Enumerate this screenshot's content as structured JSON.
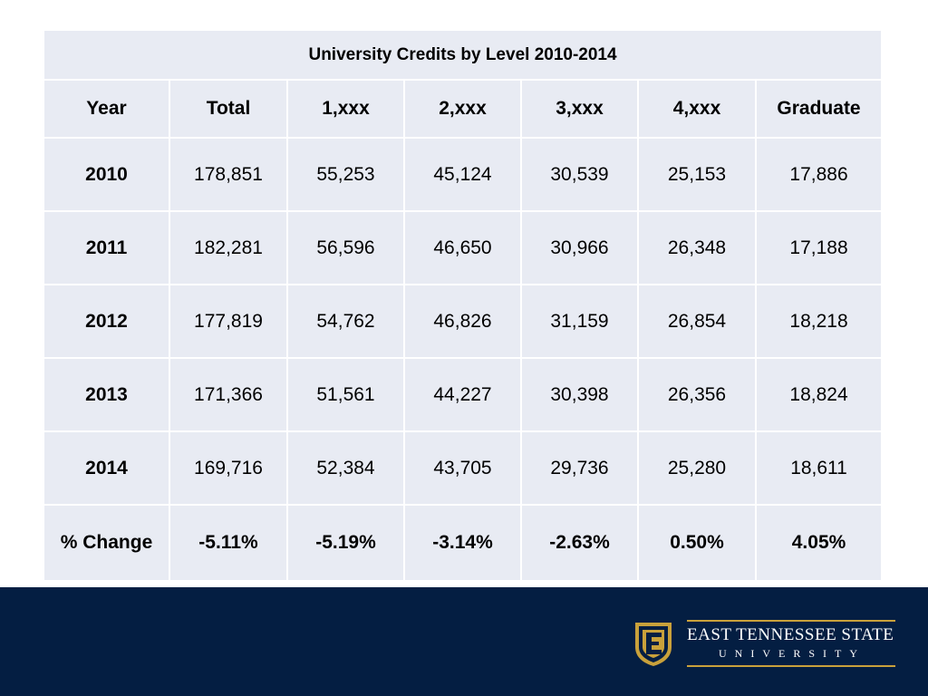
{
  "table": {
    "title": "University Credits by Level 2010-2014",
    "headers": [
      "Year",
      "Total",
      "1,xxx",
      "2,xxx",
      "3,xxx",
      "4,xxx",
      "Graduate"
    ],
    "rows": [
      [
        "2010",
        "178,851",
        "55,253",
        "45,124",
        "30,539",
        "25,153",
        "17,886"
      ],
      [
        "2011",
        "182,281",
        "56,596",
        "46,650",
        "30,966",
        "26,348",
        "17,188"
      ],
      [
        "2012",
        "177,819",
        "54,762",
        "46,826",
        "31,159",
        "26,854",
        "18,218"
      ],
      [
        "2013",
        "171,366",
        "51,561",
        "44,227",
        "30,398",
        "26,356",
        "18,824"
      ],
      [
        "2014",
        "169,716",
        "52,384",
        "43,705",
        "29,736",
        "25,280",
        "18,611"
      ]
    ],
    "change_row": [
      "% Change",
      "-5.11%",
      "-5.19%",
      "-3.14%",
      "-2.63%",
      "0.50%",
      "4.05%"
    ]
  },
  "footer": {
    "logo_name": "EAST TENNESSEE STATE",
    "logo_sub": "UNIVERSITY",
    "logo_icon": "etsu-shield-icon",
    "background_color": "#041e42",
    "accent_color": "#c9a13b"
  },
  "colors": {
    "table_background": "#e8ebf3"
  }
}
